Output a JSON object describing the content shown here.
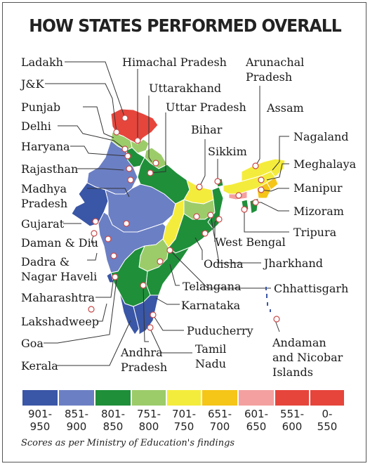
{
  "title": "HOW STATES PERFORMED OVERALL",
  "colors": {
    "901-950": "#3a56a6",
    "851-900": "#6b7fc4",
    "801-850": "#1f8f3a",
    "751-800": "#9ccc6a",
    "701-750": "#f4ec3c",
    "651-700": "#f5c518",
    "601-650": "#f4a0a0",
    "551-600": "#e6453c",
    "0-550": "#e6453c"
  },
  "labels": {
    "ladakh": "Ladakh",
    "jk": "J&K",
    "punjab": "Punjab",
    "delhi": "Delhi",
    "haryana": "Haryana",
    "rajasthan": "Rajasthan",
    "madhya_pradesh_1": "Madhya",
    "madhya_pradesh_2": "Pradesh",
    "gujarat": "Gujarat",
    "daman_diu": "Daman & Diu",
    "dadra_1": "Dadra &",
    "dadra_2": "Nagar Haveli",
    "maharashtra": "Maharashtra",
    "lakshadweep": "Lakshadweep",
    "goa": "Goa",
    "kerala": "Kerala",
    "himachal": "Himachal Pradesh",
    "uttarakhand": "Uttarakhand",
    "uttar_pradesh": "Uttar Pradesh",
    "bihar": "Bihar",
    "sikkim": "Sikkim",
    "arunachal_1": "Arunachal",
    "arunachal_2": "Pradesh",
    "assam": "Assam",
    "nagaland": "Nagaland",
    "meghalaya": "Meghalaya",
    "manipur": "Manipur",
    "mizoram": "Mizoram",
    "tripura": "Tripura",
    "west_bengal": "West Bengal",
    "jharkhand": "Jharkhand",
    "odisha": "Odisha",
    "chhattisgarh": "Chhattisgarh",
    "telangana": "Telangana",
    "karnataka": "Karnataka",
    "puducherry": "Puducherry",
    "tamil_nadu_1": "Tamil",
    "tamil_nadu_2": "Nadu",
    "andhra_1": "Andhra",
    "andhra_2": "Pradesh",
    "andaman_1": "Andaman",
    "andaman_2": "and Nicobar",
    "andaman_3": "Islands"
  },
  "legend": [
    {
      "range": "901-950",
      "top": "901-",
      "bottom": "950"
    },
    {
      "range": "851-900",
      "top": "851-",
      "bottom": "900"
    },
    {
      "range": "801-850",
      "top": "801-",
      "bottom": "850"
    },
    {
      "range": "751-800",
      "top": "751-",
      "bottom": "800"
    },
    {
      "range": "701-750",
      "top": "701-",
      "bottom": "750"
    },
    {
      "range": "651-700",
      "top": "651-",
      "bottom": "700"
    },
    {
      "range": "601-650",
      "top": "601-",
      "bottom": "650"
    },
    {
      "range": "551-600",
      "top": "551-",
      "bottom": "600"
    },
    {
      "range": "0-550",
      "top": "0-",
      "bottom": "550"
    }
  ],
  "note": "Scores as per Ministry of Education's findings"
}
